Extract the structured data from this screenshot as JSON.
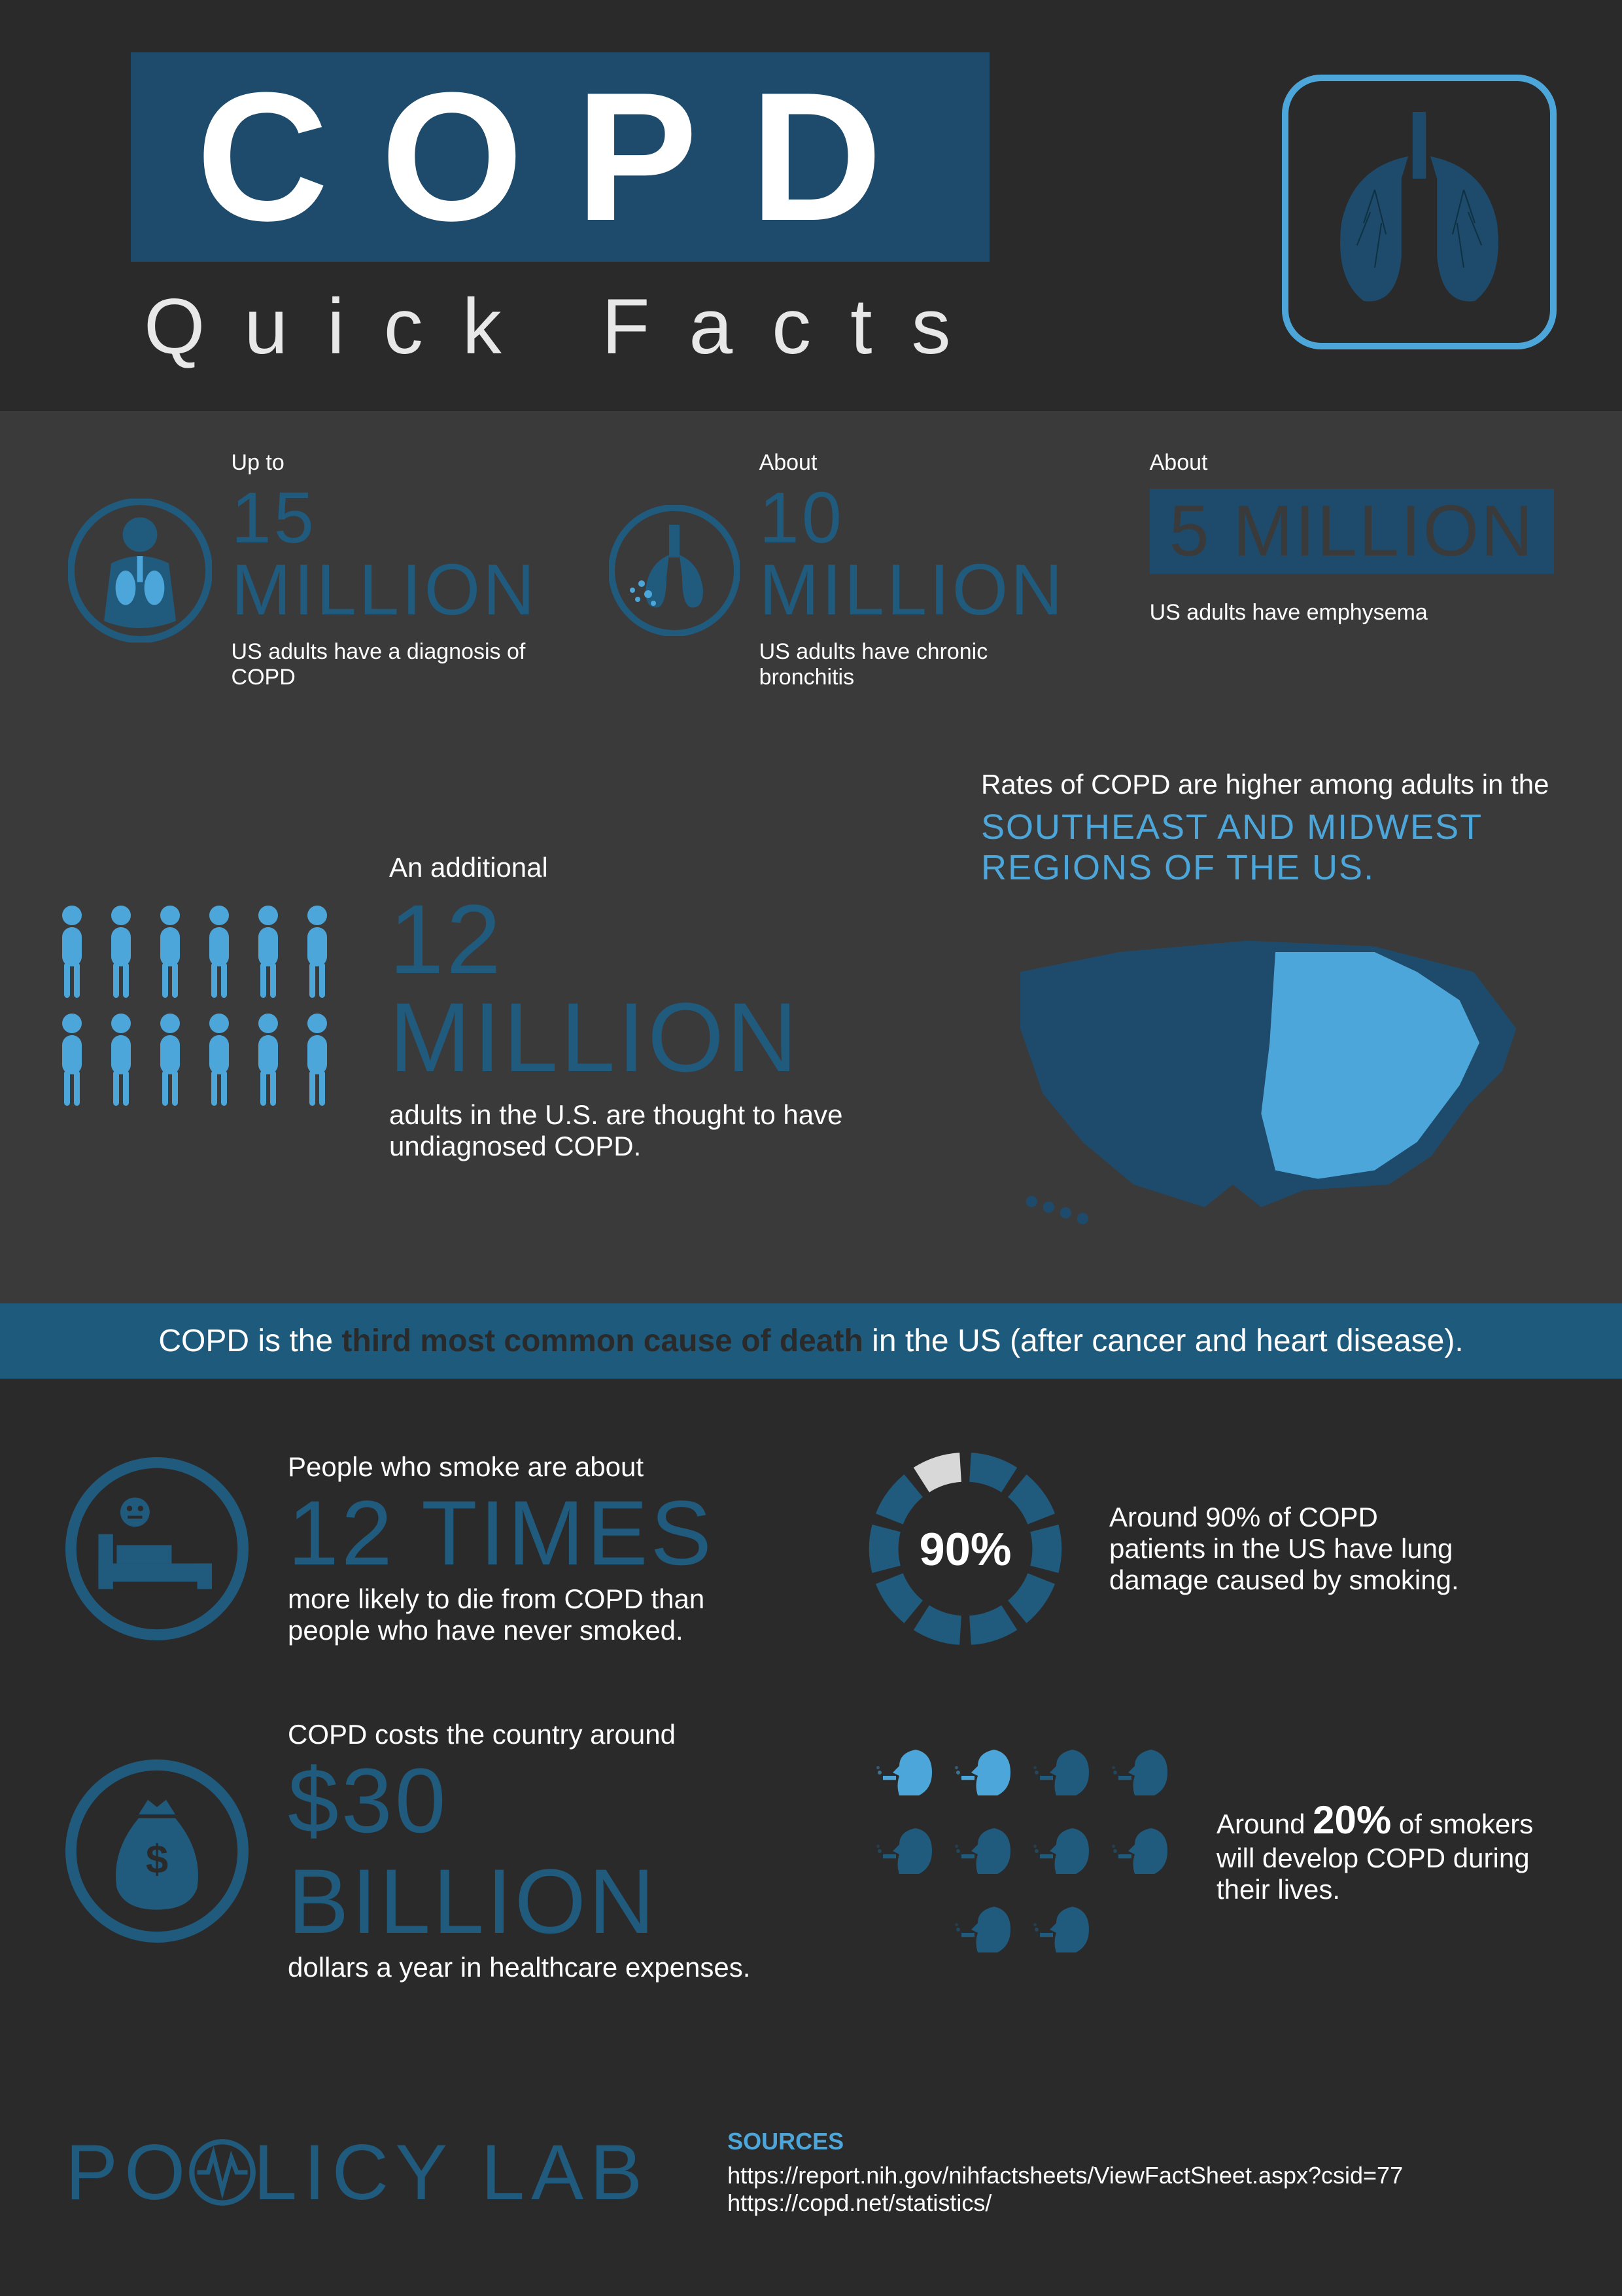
{
  "colors": {
    "bg": "#2a2a2a",
    "band": "#3a3a3a",
    "accent_dark": "#205a7c",
    "accent_box": "#1e4b6b",
    "accent_light": "#4da6d9",
    "banner_bg": "#1e5a7c",
    "text": "#ffffff",
    "text_muted": "#e8e8e8"
  },
  "typography": {
    "title_fontsize": 280,
    "subtitle_fontsize": 120,
    "big_stat_fontsize": 110,
    "body_fontsize": 42,
    "impact_family": "Impact"
  },
  "header": {
    "title": "COPD",
    "subtitle": "Quick Facts",
    "lungs_icon": "lungs-icon"
  },
  "stats": [
    {
      "icon": "torso-lungs-icon",
      "pre": "Up to",
      "value": "15 MILLION",
      "post": "US adults have a diagnosis of COPD"
    },
    {
      "icon": "bronchi-icon",
      "pre": "About",
      "value": "10 MILLION",
      "post": "US adults have chronic bronchitis"
    },
    {
      "icon": null,
      "pre": "About",
      "value": "5 MILLION",
      "post": "US adults have emphysema",
      "boxed": true
    }
  ],
  "additional": {
    "pre": "An additional",
    "value": "12 MILLION",
    "post": "adults in the U.S. are thought to have undiagnosed COPD.",
    "people_count": 12,
    "person_color": "#4da6d9"
  },
  "map": {
    "intro": "Rates of COPD are higher among adults in the",
    "highlight": "SOUTHEAST AND MIDWEST REGIONS OF THE US.",
    "base_color": "#1e4b6b",
    "highlight_color": "#4da6d9"
  },
  "banner": {
    "pre": "COPD is the ",
    "emph": "third most common cause of death",
    "post": " in the US (after cancer and heart disease)."
  },
  "facts": {
    "smoke_risk": {
      "pre": "People who smoke are about",
      "value": "12 TIMES",
      "post": "more likely to die from COPD than people who have never smoked."
    },
    "donut": {
      "percent": 90,
      "label": "90%",
      "text": "Around 90% of COPD patients in the US have lung damage caused by smoking.",
      "segments": 10,
      "fill_color": "#205a7c",
      "empty_color": "#d8d8d8"
    },
    "cost": {
      "pre": "COPD costs the country around",
      "value": "$30 BILLION",
      "post": "dollars a year in healthcare expenses."
    },
    "smokers_develop": {
      "text_pre": "Around ",
      "pct": "20%",
      "text_post": " of smokers will develop COPD during their lives.",
      "head_count": 10,
      "heads_highlighted": 2,
      "highlight_color": "#4da6d9",
      "dim_color": "#205a7c"
    }
  },
  "footer": {
    "logo_thin": "PO",
    "logo_bold": "LICY LAB",
    "sources_label": "SOURCES",
    "sources": [
      "https://report.nih.gov/nihfactsheets/ViewFactSheet.aspx?csid=77",
      "https://copd.net/statistics/"
    ]
  }
}
